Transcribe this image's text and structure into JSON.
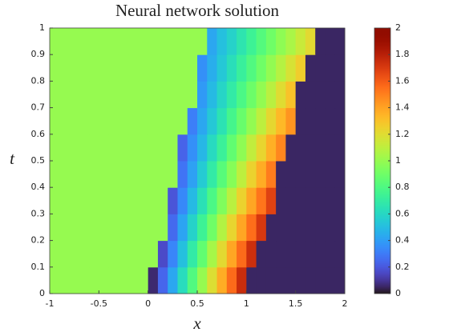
{
  "chart_data": {
    "type": "heatmap",
    "title": "Neural network solution",
    "xlabel": "x",
    "ylabel": "t",
    "colormap": "turbo",
    "clim": [
      0,
      2
    ],
    "xlim": [
      -1,
      2
    ],
    "ylim": [
      0,
      1
    ],
    "xticks": [
      -1,
      -0.5,
      0,
      0.5,
      1,
      1.5,
      2
    ],
    "yticks": [
      0,
      0.1,
      0.2,
      0.3,
      0.4,
      0.5,
      0.6,
      0.7,
      0.8,
      0.9,
      1
    ],
    "cticks": [
      0,
      0.2,
      0.4,
      0.6,
      0.8,
      1,
      1.2,
      1.4,
      1.6,
      1.8,
      2
    ],
    "x": [
      -0.95,
      -0.85,
      -0.75,
      -0.65,
      -0.55,
      -0.45,
      -0.35,
      -0.25,
      -0.15,
      -0.05,
      0.05,
      0.15,
      0.25,
      0.35,
      0.45,
      0.55,
      0.65,
      0.75,
      0.85,
      0.95,
      1.05,
      1.15,
      1.25,
      1.35,
      1.45,
      1.55,
      1.65,
      1.75,
      1.85,
      1.95
    ],
    "y": [
      0.05,
      0.15,
      0.25,
      0.35,
      0.45,
      0.55,
      0.65,
      0.75,
      0.85,
      0.95
    ],
    "z": [
      [
        1,
        1,
        1,
        1,
        1,
        1,
        1,
        1,
        1,
        1,
        0.06,
        0.24,
        0.43,
        0.62,
        0.81,
        1.0,
        1.19,
        1.37,
        1.56,
        1.75,
        0.05,
        0.05,
        0.05,
        0.05,
        0.05,
        0.05,
        0.05,
        0.05,
        0.05,
        0.05
      ],
      [
        1,
        1,
        1,
        1,
        1,
        1,
        1,
        1,
        1,
        1,
        1,
        0.16,
        0.33,
        0.51,
        0.69,
        0.86,
        1.04,
        1.21,
        1.39,
        1.56,
        1.74,
        0.05,
        0.05,
        0.05,
        0.05,
        0.05,
        0.05,
        0.05,
        0.05,
        0.05
      ],
      [
        1,
        1,
        1,
        1,
        1,
        1,
        1,
        1,
        1,
        1,
        1,
        1,
        0.25,
        0.42,
        0.58,
        0.74,
        0.9,
        1.07,
        1.23,
        1.39,
        1.55,
        1.71,
        0.05,
        0.05,
        0.05,
        0.05,
        0.05,
        0.05,
        0.05,
        0.05
      ],
      [
        1,
        1,
        1,
        1,
        1,
        1,
        1,
        1,
        1,
        1,
        1,
        1,
        0.19,
        0.34,
        0.49,
        0.64,
        0.79,
        0.94,
        1.09,
        1.24,
        1.39,
        1.53,
        1.68,
        0.05,
        0.05,
        0.05,
        0.05,
        0.05,
        0.05,
        0.05
      ],
      [
        1,
        1,
        1,
        1,
        1,
        1,
        1,
        1,
        1,
        1,
        1,
        1,
        1,
        0.28,
        0.41,
        0.55,
        0.69,
        0.83,
        0.96,
        1.1,
        1.24,
        1.37,
        1.51,
        0.05,
        0.05,
        0.05,
        0.05,
        0.05,
        0.05,
        0.05
      ],
      [
        1,
        1,
        1,
        1,
        1,
        1,
        1,
        1,
        1,
        1,
        1,
        1,
        1,
        0.23,
        0.36,
        0.48,
        0.61,
        0.73,
        0.86,
        0.98,
        1.11,
        1.23,
        1.36,
        1.48,
        0.05,
        0.05,
        0.05,
        0.05,
        0.05,
        0.05
      ],
      [
        1,
        1,
        1,
        1,
        1,
        1,
        1,
        1,
        1,
        1,
        1,
        1,
        1,
        1,
        0.31,
        0.43,
        0.54,
        0.65,
        0.77,
        0.88,
        0.99,
        1.1,
        1.22,
        1.33,
        1.44,
        0.05,
        0.05,
        0.05,
        0.05,
        0.05
      ],
      [
        1,
        1,
        1,
        1,
        1,
        1,
        1,
        1,
        1,
        1,
        1,
        1,
        1,
        1,
        1,
        0.39,
        0.49,
        0.59,
        0.69,
        0.79,
        0.89,
        0.99,
        1.09,
        1.2,
        1.3,
        0.05,
        0.05,
        0.05,
        0.05,
        0.05
      ],
      [
        1,
        1,
        1,
        1,
        1,
        1,
        1,
        1,
        1,
        1,
        1,
        1,
        1,
        1,
        1,
        0.36,
        0.45,
        0.54,
        0.63,
        0.72,
        0.81,
        0.9,
        0.99,
        1.08,
        1.17,
        1.26,
        0.05,
        0.05,
        0.05,
        0.05
      ],
      [
        1,
        1,
        1,
        1,
        1,
        1,
        1,
        1,
        1,
        1,
        1,
        1,
        1,
        1,
        1,
        1,
        0.43,
        0.51,
        0.58,
        0.66,
        0.74,
        0.82,
        0.9,
        0.98,
        1.05,
        1.13,
        1.21,
        0.05,
        0.05,
        0.05
      ]
    ]
  }
}
